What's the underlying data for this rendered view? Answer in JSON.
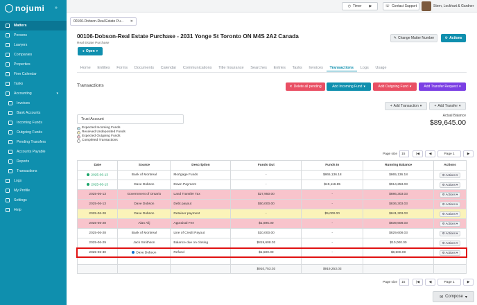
{
  "app": {
    "brand": "nojumi"
  },
  "sidebar": {
    "items": [
      {
        "label": "Matters",
        "active": true
      },
      {
        "label": "Persons"
      },
      {
        "label": "Lawyers"
      },
      {
        "label": "Companies"
      },
      {
        "label": "Properties"
      },
      {
        "label": "Firm Calendar"
      },
      {
        "label": "Tasks"
      },
      {
        "label": "Accounting",
        "expandable": true
      },
      {
        "label": "Invoices",
        "sub": true
      },
      {
        "label": "Bank Accounts",
        "sub": true
      },
      {
        "label": "Incoming Funds",
        "sub": true
      },
      {
        "label": "Outgoing Funds",
        "sub": true
      },
      {
        "label": "Pending Transfers",
        "sub": true
      },
      {
        "label": "Accounts Payable",
        "sub": true
      },
      {
        "label": "Reports",
        "sub": true
      },
      {
        "label": "Transactions",
        "sub": true
      },
      {
        "label": "Logs"
      },
      {
        "label": "My Profile"
      },
      {
        "label": "Settings"
      },
      {
        "label": "Help"
      }
    ]
  },
  "topbar": {
    "timer_label": "Timer",
    "support_label": "Contact Support",
    "firm_name": "Stern, Lockhart & Gardner"
  },
  "doc_tab": {
    "label": "00106-Dobson-Real Estate Pu..."
  },
  "matter": {
    "title": "00106-Dobson-Real Estate Purchase - 2031 Yonge St Toronto ON M4S 2A2 Canada",
    "subtitle": "Real Estate Purchase",
    "status_label": "Open",
    "change_number_label": "Change Matter Number",
    "actions_label": "Actions"
  },
  "tabs": [
    "Home",
    "Entities",
    "Forms",
    "Documents",
    "Calendar",
    "Communications",
    "Title Insurance",
    "Searches",
    "Entries",
    "Tasks",
    "Invoices",
    "Transactions",
    "Logs",
    "Usage"
  ],
  "active_tab": "Transactions",
  "transactions": {
    "title": "Transactions",
    "delete_all_label": "Delete all pending",
    "add_incoming_label": "Add Incoming Fund",
    "add_outgoing_label": "Add Outgoing Fund",
    "add_transfer_request_label": "Add Transfer Request",
    "add_transaction_label": "Add Transaction",
    "add_transfer_label": "Add Transfer",
    "trust_account": "Trust Account",
    "legend": [
      {
        "label": "Expected Incoming Funds",
        "color": "#b7e4ef"
      },
      {
        "label": "Received Undeposited Funds",
        "color": "#fbf3b9"
      },
      {
        "label": "Expected Outgoing Funds",
        "color": "#f8c4cc"
      },
      {
        "label": "Completed Transactions",
        "color": "#ffffff"
      }
    ],
    "actual_balance_label": "Actual Balance",
    "actual_balance": "$89,645.00",
    "page_size_label": "Page size",
    "page_size": "15",
    "page_label": "Page 1",
    "columns": [
      "Date",
      "Source",
      "Description",
      "Funds Out",
      "Funds In",
      "Running Balance",
      "Actions"
    ],
    "rows": [
      {
        "date": "2025-06-13",
        "source": "Bank of Montreal",
        "description": "Mortgage Funds",
        "out": "-",
        "in": "$865,136.18",
        "balance": "$865,136.18",
        "status": "done",
        "style": "white"
      },
      {
        "date": "2025-06-13",
        "source": "Dave Dobson",
        "description": "Down Payment",
        "out": "-",
        "in": "$49,116.85",
        "balance": "$914,253.03",
        "status": "done",
        "style": "white"
      },
      {
        "date": "2025-06-13",
        "source": "Government of Ontario",
        "description": "Land Transfer Tax",
        "out": "$27,950.00",
        "in": "-",
        "balance": "$886,303.03",
        "status": "",
        "style": "pink"
      },
      {
        "date": "2025-06-13",
        "source": "Dave Dobson",
        "description": "Debt payout",
        "out": "$50,000.00",
        "in": "-",
        "balance": "$836,303.03",
        "status": "",
        "style": "pink"
      },
      {
        "date": "2025-06-28",
        "source": "Dave Dobson",
        "description": "Retainer payment",
        "out": "-",
        "in": "$5,000.00",
        "balance": "$841,303.03",
        "status": "",
        "style": "yellow"
      },
      {
        "date": "2025-06-28",
        "source": "Alan Alij",
        "description": "Appraisal Fee",
        "out": "$1,695.00",
        "in": "-",
        "balance": "$839,608.03",
        "status": "",
        "style": "pink"
      },
      {
        "date": "2025-06-28",
        "source": "Bank of Montreal",
        "description": "Line of Credit Payout",
        "out": "$10,000.00",
        "in": "-",
        "balance": "$829,608.03",
        "status": "",
        "style": "white"
      },
      {
        "date": "2025-06-29",
        "source": "Jack Smithson",
        "description": "Balance due on closing",
        "out": "$819,608.03",
        "in": "-",
        "balance": "$10,000.00",
        "status": "",
        "style": "white"
      },
      {
        "date": "2025-06-30",
        "source": "Dave Dobson",
        "description": "Refund",
        "out": "$1,500.00",
        "in": "-",
        "balance": "$8,500.00",
        "status": "info",
        "style": "white"
      }
    ],
    "total_out": "$910,753.03",
    "total_in": "$919,253.03",
    "row_action_label": "Actions"
  },
  "compose": {
    "label": "Compose"
  }
}
